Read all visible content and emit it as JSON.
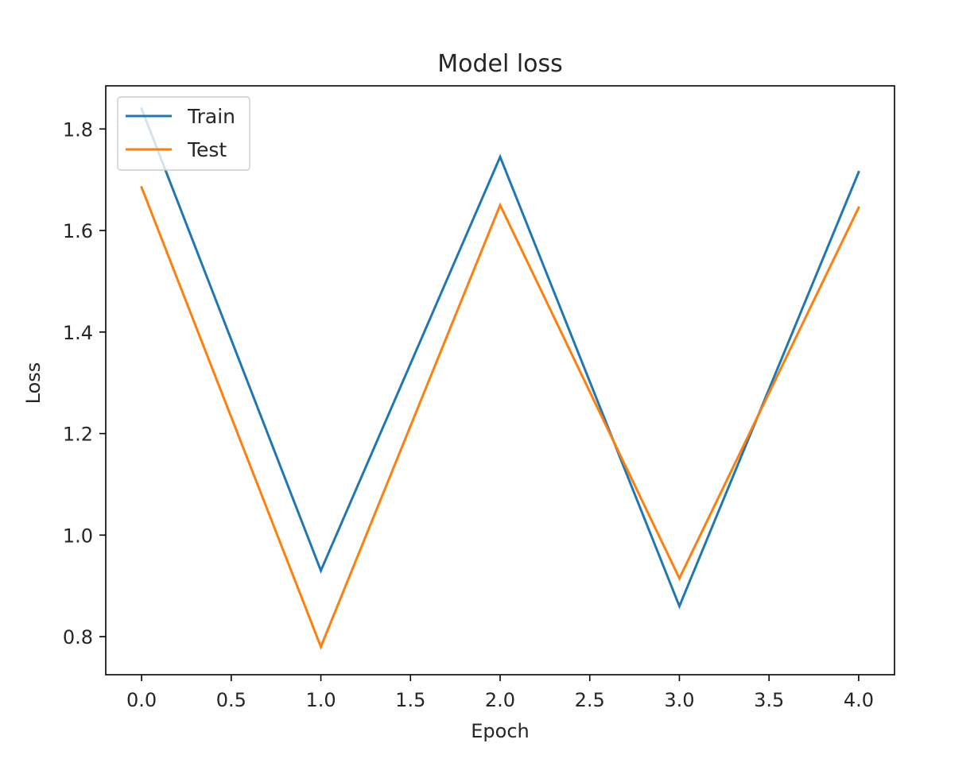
{
  "chart_data": {
    "type": "line",
    "title": "Model loss",
    "xlabel": "Epoch",
    "ylabel": "Loss",
    "xlim": [
      -0.2,
      4.2
    ],
    "ylim": [
      0.725,
      1.885
    ],
    "x_ticks": [
      0.0,
      0.5,
      1.0,
      1.5,
      2.0,
      2.5,
      3.0,
      3.5,
      4.0
    ],
    "x_tick_labels": [
      "0.0",
      "0.5",
      "1.0",
      "1.5",
      "2.0",
      "2.5",
      "3.0",
      "3.5",
      "4.0"
    ],
    "y_ticks": [
      0.8,
      1.0,
      1.2,
      1.4,
      1.6,
      1.8
    ],
    "y_tick_labels": [
      "0.8",
      "1.0",
      "1.2",
      "1.4",
      "1.6",
      "1.8"
    ],
    "grid": false,
    "legend_position": "top-left",
    "x": [
      0,
      1,
      2,
      3,
      4
    ],
    "series": [
      {
        "name": "Train",
        "color": "#1f77b4",
        "values": [
          1.84,
          0.93,
          1.745,
          0.86,
          1.715
        ]
      },
      {
        "name": "Test",
        "color": "#ff7f0e",
        "values": [
          1.685,
          0.78,
          1.65,
          0.915,
          1.645
        ]
      }
    ]
  }
}
